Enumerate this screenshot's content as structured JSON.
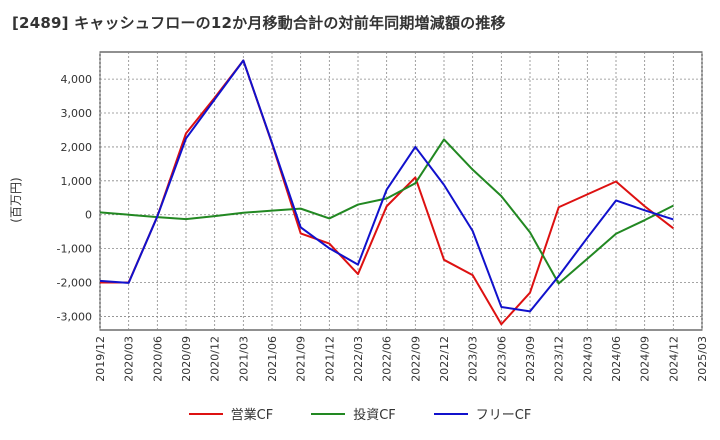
{
  "chart_data": {
    "type": "line",
    "title": "[2489]  キャッシュフローの12か月移動合計の対前年同期増減額の推移",
    "ylabel": "(百万円)",
    "xlabel": "",
    "ylim": [
      -3400,
      4800
    ],
    "yticks": [
      -3000,
      -2000,
      -1000,
      0,
      1000,
      2000,
      3000,
      4000
    ],
    "ytick_labels": [
      "-3,000",
      "-2,000",
      "-1,000",
      "0",
      "1,000",
      "2,000",
      "3,000",
      "4,000"
    ],
    "categories": [
      "2019/12",
      "2020/03",
      "2020/06",
      "2020/09",
      "2020/12",
      "2021/03",
      "2021/06",
      "2021/09",
      "2021/12",
      "2022/03",
      "2022/06",
      "2022/09",
      "2022/12",
      "2023/03",
      "2023/06",
      "2023/09",
      "2023/12",
      "2024/03",
      "2024/06",
      "2024/09",
      "2024/12",
      "2025/03"
    ],
    "grid": true,
    "legend_position": "bottom",
    "series": [
      {
        "name": "営業CF",
        "color": "#dd1111",
        "values": [
          -2000,
          -2000,
          -50,
          2400,
          3450,
          4550,
          2100,
          -550,
          -850,
          -1750,
          250,
          1100,
          -1330,
          -1780,
          -3230,
          -2300,
          220,
          600,
          980,
          250,
          -400,
          null
        ]
      },
      {
        "name": "投資CF",
        "color": "#228822",
        "values": [
          70,
          0,
          -70,
          -130,
          -40,
          60,
          120,
          180,
          -110,
          300,
          480,
          930,
          2220,
          1330,
          550,
          -520,
          -2030,
          -1300,
          -560,
          -160,
          270,
          null
        ]
      },
      {
        "name": "フリーCF",
        "color": "#1111cc",
        "values": [
          -1950,
          -2010,
          -50,
          2250,
          3400,
          4550,
          2120,
          -370,
          -990,
          -1470,
          740,
          2000,
          880,
          -480,
          -2720,
          -2850,
          -1810,
          -680,
          420,
          130,
          -140,
          null
        ]
      }
    ]
  }
}
